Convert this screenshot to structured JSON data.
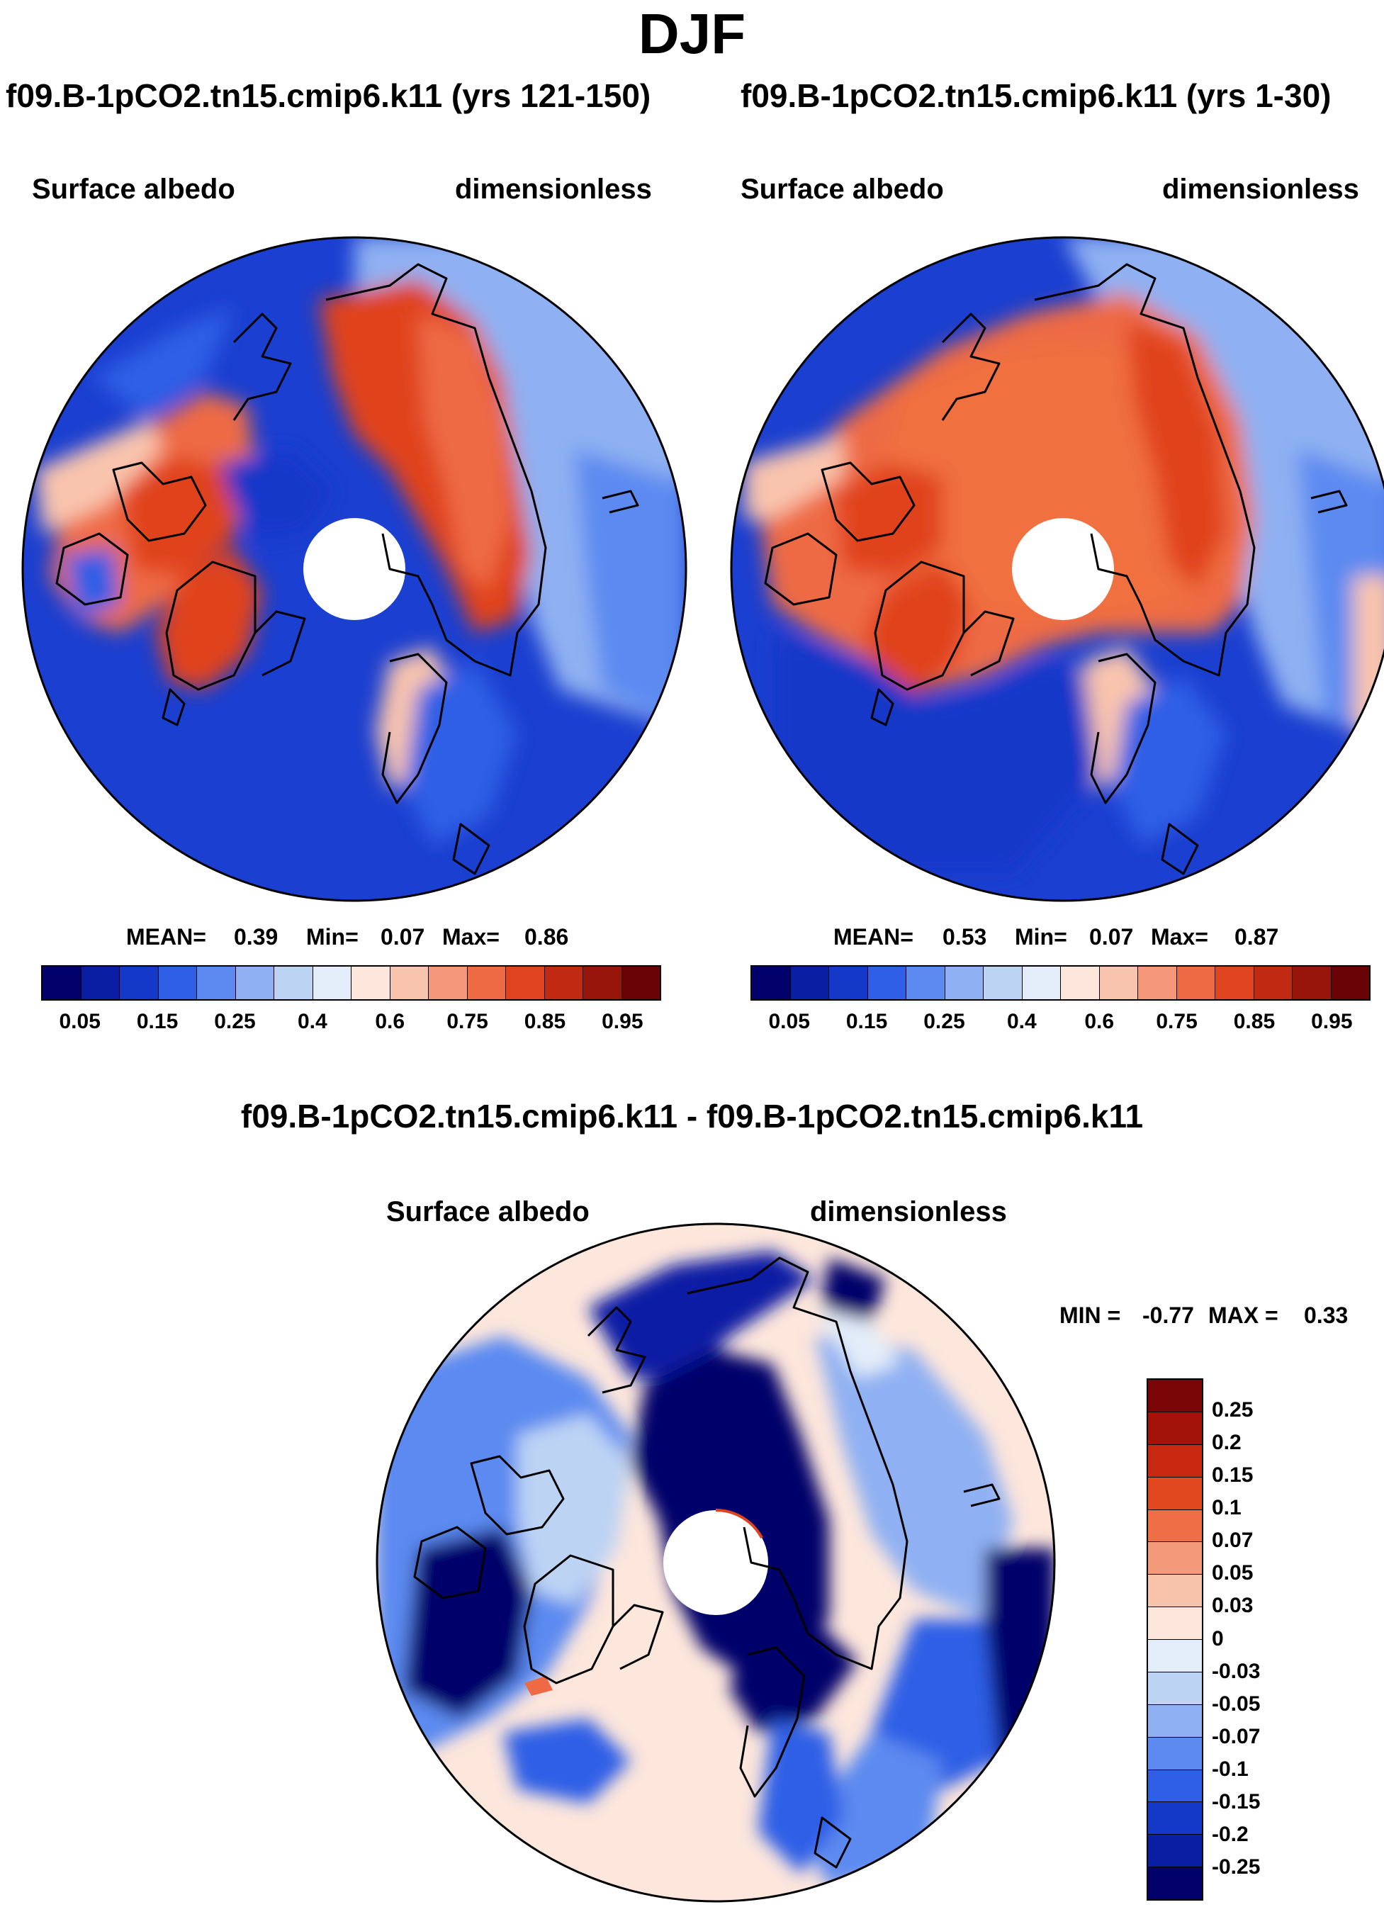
{
  "figure": {
    "title": "DJF"
  },
  "panel_left": {
    "run": "f09.B-1pCO2.tn15.cmip6.k11 (yrs 121-150)",
    "variable": "Surface albedo",
    "units": "dimensionless",
    "mean_label": "MEAN=",
    "mean": "0.39",
    "min_label": "Min=",
    "min": "0.07",
    "max_label": "Max=",
    "max": "0.86"
  },
  "panel_right": {
    "run": "f09.B-1pCO2.tn15.cmip6.k11 (yrs 1-30)",
    "variable": "Surface albedo",
    "units": "dimensionless",
    "mean_label": "MEAN=",
    "mean": "0.53",
    "min_label": "Min=",
    "min": "0.07",
    "max_label": "Max=",
    "max": "0.87"
  },
  "panel_diff": {
    "run": "f09.B-1pCO2.tn15.cmip6.k11 - f09.B-1pCO2.tn15.cmip6.k11",
    "variable": "Surface albedo",
    "units": "dimensionless",
    "min_label": "MIN =",
    "min": "-0.77",
    "max_label": "MAX =",
    "max": "0.33"
  },
  "colorbar_abs": {
    "colors": [
      "#02016b",
      "#0a1ea4",
      "#1439c9",
      "#2e5fe6",
      "#5c8af0",
      "#8fb0f2",
      "#bcd3f4",
      "#e3edf9",
      "#fde6dc",
      "#f9c4ad",
      "#f4977a",
      "#ee6a44",
      "#e0431f",
      "#c02a12",
      "#97150a",
      "#6a0306"
    ],
    "ticks": [
      "0.05",
      "0.15",
      "0.25",
      "0.4",
      "0.6",
      "0.75",
      "0.85",
      "0.95"
    ]
  },
  "colorbar_diff": {
    "colors": [
      "#7a0506",
      "#a4130a",
      "#c82810",
      "#e2481f",
      "#ef6e45",
      "#f39a7b",
      "#f7c3ab",
      "#fde6dc",
      "#e3edf9",
      "#bcd3f4",
      "#8fb0f2",
      "#5c8af0",
      "#2e5fe6",
      "#1439c9",
      "#0a1ea4",
      "#02016b"
    ],
    "labels": [
      "0.25",
      "0.2",
      "0.15",
      "0.1",
      "0.07",
      "0.05",
      "0.03",
      "0",
      "-0.03",
      "-0.05",
      "-0.07",
      "-0.1",
      "-0.15",
      "-0.2",
      "-0.25"
    ]
  }
}
